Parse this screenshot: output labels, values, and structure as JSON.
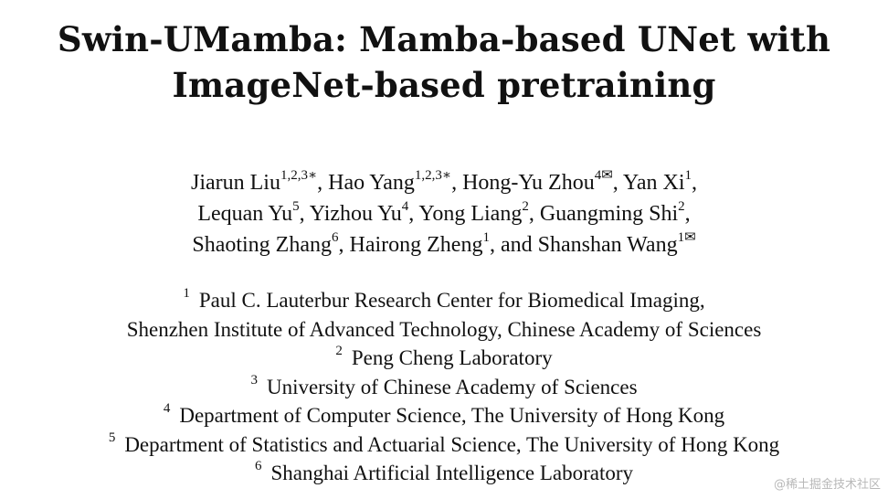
{
  "title": {
    "line1": "Swin-UMamba: Mamba-based UNet with",
    "line2": "ImageNet-based pretraining"
  },
  "authors": {
    "lines": [
      [
        {
          "name": "Jiarun Liu",
          "sup": "1,2,3∗",
          "sep": ", "
        },
        {
          "name": "Hao Yang",
          "sup": "1,2,3∗",
          "sep": ", "
        },
        {
          "name": "Hong-Yu Zhou",
          "sup": "4✉",
          "sep": ", "
        },
        {
          "name": "Yan Xi",
          "sup": "1",
          "sep": ","
        }
      ],
      [
        {
          "name": "Lequan Yu",
          "sup": "5",
          "sep": ", "
        },
        {
          "name": "Yizhou Yu",
          "sup": "4",
          "sep": ", "
        },
        {
          "name": "Yong Liang",
          "sup": "2",
          "sep": ", "
        },
        {
          "name": "Guangming Shi",
          "sup": "2",
          "sep": ","
        }
      ],
      [
        {
          "name": "Shaoting Zhang",
          "sup": "6",
          "sep": ", "
        },
        {
          "name": "Hairong Zheng",
          "sup": "1",
          "sep": ", "
        },
        {
          "name": "and Shanshan Wang",
          "sup": "1✉",
          "sep": ""
        }
      ]
    ]
  },
  "affiliations": [
    {
      "num": "1",
      "text": "Paul C. Lauterbur Research Center for Biomedical Imaging,"
    },
    {
      "num": "",
      "text": "Shenzhen Institute of Advanced Technology, Chinese Academy of Sciences"
    },
    {
      "num": "2",
      "text": "Peng Cheng Laboratory"
    },
    {
      "num": "3",
      "text": "University of Chinese Academy of Sciences"
    },
    {
      "num": "4",
      "text": "Department of Computer Science, The University of Hong Kong"
    },
    {
      "num": "5",
      "text": "Department of Statistics and Actuarial Science, The University of Hong Kong"
    },
    {
      "num": "6",
      "text": "Shanghai Artificial Intelligence Laboratory"
    }
  ],
  "watermark": "@稀土掘金技术社区"
}
